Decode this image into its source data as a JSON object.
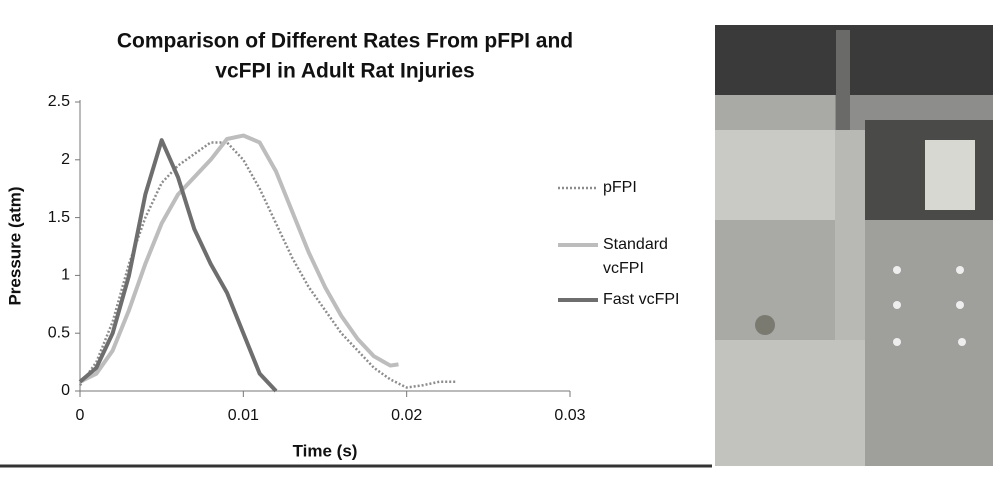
{
  "chart_data": {
    "type": "line",
    "title": [
      "Comparison of Different Rates From pFPI and",
      "vcFPI in Adult Rat Injuries"
    ],
    "x_label": "Time (s)",
    "y_label": "Pressure (atm)",
    "xlim": [
      0,
      0.03
    ],
    "xticks": [
      0,
      0.01,
      0.02,
      0.03
    ],
    "ylim": [
      0,
      2.5
    ],
    "yticks": [
      0,
      0.5,
      1,
      1.5,
      2,
      2.5
    ],
    "legend": "right",
    "series": [
      {
        "name": "pFPI",
        "color": "#8c8c8c",
        "style": "dotted",
        "x": [
          0,
          0.001,
          0.002,
          0.003,
          0.004,
          0.005,
          0.006,
          0.007,
          0.008,
          0.009,
          0.01,
          0.011,
          0.012,
          0.013,
          0.014,
          0.015,
          0.016,
          0.017,
          0.018,
          0.019,
          0.02,
          0.021,
          0.022,
          0.023
        ],
        "values": [
          0.05,
          0.25,
          0.6,
          1.1,
          1.5,
          1.8,
          1.95,
          2.05,
          2.15,
          2.15,
          2.0,
          1.75,
          1.45,
          1.15,
          0.9,
          0.7,
          0.5,
          0.35,
          0.2,
          0.1,
          0.03,
          0.05,
          0.08,
          0.08
        ]
      },
      {
        "name": "Standard vcFPI",
        "color": "#bdbdbd",
        "style": "solid",
        "x": [
          0,
          0.001,
          0.002,
          0.003,
          0.004,
          0.005,
          0.006,
          0.007,
          0.008,
          0.009,
          0.01,
          0.011,
          0.012,
          0.013,
          0.014,
          0.015,
          0.016,
          0.017,
          0.018,
          0.019,
          0.0195
        ],
        "values": [
          0.08,
          0.15,
          0.35,
          0.7,
          1.1,
          1.45,
          1.7,
          1.85,
          2.0,
          2.18,
          2.21,
          2.15,
          1.9,
          1.55,
          1.2,
          0.9,
          0.65,
          0.45,
          0.3,
          0.22,
          0.23
        ]
      },
      {
        "name": "Fast vcFPI",
        "color": "#6e6e6e",
        "style": "solid",
        "x": [
          0,
          0.001,
          0.002,
          0.003,
          0.004,
          0.005,
          0.006,
          0.007,
          0.008,
          0.009,
          0.01,
          0.011,
          0.012
        ],
        "values": [
          0.08,
          0.2,
          0.5,
          1.0,
          1.7,
          2.17,
          1.85,
          1.4,
          1.1,
          0.85,
          0.5,
          0.15,
          0.0
        ]
      }
    ]
  }
}
